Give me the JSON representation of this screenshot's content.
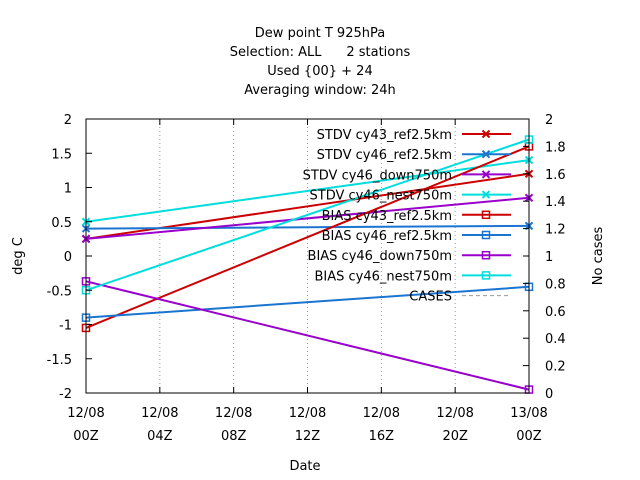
{
  "chart_data": {
    "type": "line",
    "title_lines": [
      "Dew point T 925hPa",
      "Selection: ALL      2 stations",
      "Used {00} + 24",
      "Averaging window: 24h"
    ],
    "xlabel": "Date",
    "ylabel": "deg C",
    "y2label": "No cases",
    "x_ticks": [
      {
        "line1": "12/08",
        "line2": "00Z"
      },
      {
        "line1": "12/08",
        "line2": "04Z"
      },
      {
        "line1": "12/08",
        "line2": "08Z"
      },
      {
        "line1": "12/08",
        "line2": "12Z"
      },
      {
        "line1": "12/08",
        "line2": "16Z"
      },
      {
        "line1": "12/08",
        "line2": "20Z"
      },
      {
        "line1": "13/08",
        "line2": "00Z"
      }
    ],
    "x_range_hours": [
      0,
      24
    ],
    "ylim": [
      -2,
      2
    ],
    "y_ticks": [
      "-2",
      "-1.5",
      "-1",
      "-0.5",
      "0",
      "0.5",
      "1",
      "1.5",
      "2"
    ],
    "y2lim": [
      0,
      2
    ],
    "y2_ticks": [
      "0",
      "0.2",
      "0.4",
      "0.6",
      "0.8",
      "1",
      "1.2",
      "1.4",
      "1.6",
      "1.8",
      "2"
    ],
    "legend_position": "top-right",
    "series": [
      {
        "name": "STDV cy43_ref2.5km",
        "color": "#cc0000",
        "marker": "x",
        "x": [
          0,
          24
        ],
        "y": [
          0.25,
          1.2
        ]
      },
      {
        "name": "STDV cy46_ref2.5km",
        "color": "#1a75d1",
        "marker": "x",
        "x": [
          0,
          24
        ],
        "y": [
          0.4,
          0.44
        ]
      },
      {
        "name": "STDV cy46_down750m",
        "color": "#9900cc",
        "marker": "x",
        "x": [
          0,
          24
        ],
        "y": [
          0.25,
          0.85
        ]
      },
      {
        "name": "STDV cy46_nest750m",
        "color": "#00dddd",
        "marker": "x",
        "x": [
          0,
          24
        ],
        "y": [
          0.5,
          1.4
        ]
      },
      {
        "name": "BIAS cy43_ref2.5km",
        "color": "#cc0000",
        "marker": "square",
        "x": [
          0,
          24
        ],
        "y": [
          -1.05,
          1.6
        ]
      },
      {
        "name": "BIAS cy46_ref2.5km",
        "color": "#1a75d1",
        "marker": "square",
        "x": [
          0,
          24
        ],
        "y": [
          -0.9,
          -0.45
        ]
      },
      {
        "name": "BIAS cy46_down750m",
        "color": "#9900cc",
        "marker": "square",
        "x": [
          0,
          24
        ],
        "y": [
          -0.37,
          -1.95
        ]
      },
      {
        "name": "BIAS cy46_nest750m",
        "color": "#00dddd",
        "marker": "square",
        "x": [
          0,
          24
        ],
        "y": [
          -0.5,
          1.7
        ]
      },
      {
        "name": "CASES",
        "color": "#999999",
        "marker": "none",
        "dashed": true,
        "x": [],
        "y": []
      }
    ]
  }
}
